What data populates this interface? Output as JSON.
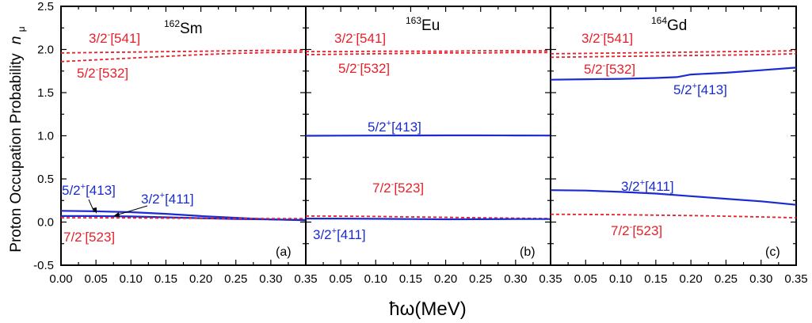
{
  "chart_data": {
    "type": "line",
    "ylabel": "Proton Occupation Probability",
    "ylabel_symbol": "n",
    "ylabel_subscript": "μ",
    "xlabel": "ħω(MeV)",
    "ylim": [
      -0.5,
      2.5
    ],
    "yticks": [
      "-0.5",
      "0.0",
      "0.5",
      "1.0",
      "1.5",
      "2.0",
      "2.5"
    ],
    "colors": {
      "red": "#e8202a",
      "blue": "#1a2bd0"
    },
    "panels": [
      {
        "label": "(a)",
        "nucleus_mass": "162",
        "nucleus_symbol": "Sm",
        "xlim": [
          0,
          0.35
        ],
        "xticks": [
          "0.00",
          "0.05",
          "0.10",
          "0.15",
          "0.20",
          "0.25",
          "0.30",
          "0.35"
        ],
        "series": [
          {
            "label_pre": "3/2",
            "label_sup": "-",
            "label_post": "[541]",
            "color": "red",
            "style": "dashed",
            "x": [
              0,
              0.05,
              0.1,
              0.15,
              0.2,
              0.25,
              0.3,
              0.35
            ],
            "y": [
              1.96,
              1.965,
              1.97,
              1.975,
              1.98,
              1.985,
              1.99,
              1.99
            ]
          },
          {
            "label_pre": "5/2",
            "label_sup": "-",
            "label_post": "[532]",
            "color": "red",
            "style": "dashed",
            "x": [
              0,
              0.05,
              0.1,
              0.15,
              0.2,
              0.25,
              0.3,
              0.35
            ],
            "y": [
              1.86,
              1.88,
              1.9,
              1.92,
              1.94,
              1.955,
              1.965,
              1.97
            ]
          },
          {
            "label_pre": "5/2",
            "label_sup": "+",
            "label_post": "[413]",
            "color": "blue",
            "style": "solid",
            "x": [
              0,
              0.05,
              0.1,
              0.15,
              0.2,
              0.25,
              0.3,
              0.35
            ],
            "y": [
              0.13,
              0.125,
              0.115,
              0.095,
              0.07,
              0.05,
              0.03,
              0.02
            ]
          },
          {
            "label_pre": "3/2",
            "label_sup": "+",
            "label_post": "[411]",
            "color": "blue",
            "style": "solid",
            "x": [
              0,
              0.05,
              0.1,
              0.15,
              0.2,
              0.25,
              0.3,
              0.35
            ],
            "y": [
              0.07,
              0.07,
              0.065,
              0.055,
              0.045,
              0.035,
              0.03,
              0.025
            ]
          },
          {
            "label_pre": "7/2",
            "label_sup": "-",
            "label_post": "[523]",
            "color": "red",
            "style": "dashed",
            "x": [
              0,
              0.05,
              0.1,
              0.15,
              0.2,
              0.25,
              0.3,
              0.35
            ],
            "y": [
              0.05,
              0.05,
              0.048,
              0.045,
              0.043,
              0.042,
              0.04,
              0.04
            ]
          }
        ]
      },
      {
        "label": "(b)",
        "nucleus_mass": "163",
        "nucleus_symbol": "Eu",
        "xlim": [
          0,
          0.35
        ],
        "xticks": [
          "0.05",
          "0.10",
          "0.15",
          "0.20",
          "0.25",
          "0.30",
          "0.35"
        ],
        "series": [
          {
            "label_pre": "3/2",
            "label_sup": "-",
            "label_post": "[541]",
            "color": "red",
            "style": "dashed",
            "x": [
              0,
              0.05,
              0.1,
              0.15,
              0.2,
              0.25,
              0.3,
              0.35
            ],
            "y": [
              1.975,
              1.975,
              1.98,
              1.98,
              1.98,
              1.985,
              1.985,
              1.985
            ]
          },
          {
            "label_pre": "5/2",
            "label_sup": "-",
            "label_post": "[532]",
            "color": "red",
            "style": "dashed",
            "x": [
              0,
              0.05,
              0.1,
              0.15,
              0.2,
              0.25,
              0.3,
              0.35
            ],
            "y": [
              1.94,
              1.945,
              1.95,
              1.955,
              1.96,
              1.96,
              1.965,
              1.965
            ]
          },
          {
            "label_pre": "5/2",
            "label_sup": "+",
            "label_post": "[413]",
            "color": "blue",
            "style": "solid",
            "x": [
              0,
              0.05,
              0.1,
              0.15,
              0.2,
              0.25,
              0.3,
              0.35
            ],
            "y": [
              1.0,
              1.002,
              1.003,
              1.004,
              1.005,
              1.005,
              1.004,
              1.003
            ]
          },
          {
            "label_pre": "7/2",
            "label_sup": "-",
            "label_post": "[523]",
            "color": "red",
            "style": "dashed",
            "x": [
              0,
              0.05,
              0.1,
              0.15,
              0.2,
              0.25,
              0.3,
              0.35
            ],
            "y": [
              0.07,
              0.068,
              0.065,
              0.06,
              0.055,
              0.05,
              0.045,
              0.04
            ]
          },
          {
            "label_pre": "3/2",
            "label_sup": "+",
            "label_post": "[411]",
            "color": "blue",
            "style": "solid",
            "x": [
              0,
              0.05,
              0.1,
              0.15,
              0.2,
              0.25,
              0.3,
              0.35
            ],
            "y": [
              0.04,
              0.04,
              0.038,
              0.035,
              0.032,
              0.033,
              0.035,
              0.035
            ]
          }
        ]
      },
      {
        "label": "(c)",
        "nucleus_mass": "164",
        "nucleus_symbol": "Gd",
        "xlim": [
          0,
          0.35
        ],
        "xticks": [
          "0.05",
          "0.10",
          "0.15",
          "0.20",
          "0.25",
          "0.30",
          "0.35"
        ],
        "series": [
          {
            "label_pre": "3/2",
            "label_sup": "-",
            "label_post": "[541]",
            "color": "red",
            "style": "dashed",
            "x": [
              0,
              0.05,
              0.1,
              0.15,
              0.2,
              0.25,
              0.3,
              0.35
            ],
            "y": [
              1.95,
              1.955,
              1.96,
              1.965,
              1.97,
              1.975,
              1.98,
              1.985
            ]
          },
          {
            "label_pre": "5/2",
            "label_sup": "-",
            "label_post": "[532]",
            "color": "red",
            "style": "dashed",
            "x": [
              0,
              0.05,
              0.1,
              0.15,
              0.2,
              0.25,
              0.3,
              0.35
            ],
            "y": [
              1.91,
              1.915,
              1.92,
              1.925,
              1.93,
              1.935,
              1.94,
              1.95
            ]
          },
          {
            "label_pre": "5/2",
            "label_sup": "+",
            "label_post": "[413]",
            "color": "blue",
            "style": "solid",
            "x": [
              0,
              0.05,
              0.1,
              0.15,
              0.18,
              0.2,
              0.25,
              0.3,
              0.35
            ],
            "y": [
              1.65,
              1.655,
              1.66,
              1.67,
              1.68,
              1.71,
              1.73,
              1.76,
              1.79
            ]
          },
          {
            "label_pre": "3/2",
            "label_sup": "+",
            "label_post": "[411]",
            "color": "blue",
            "style": "solid",
            "x": [
              0,
              0.05,
              0.1,
              0.15,
              0.2,
              0.25,
              0.3,
              0.35
            ],
            "y": [
              0.37,
              0.365,
              0.35,
              0.33,
              0.3,
              0.27,
              0.24,
              0.2
            ]
          },
          {
            "label_pre": "7/2",
            "label_sup": "-",
            "label_post": "[523]",
            "color": "red",
            "style": "dashed",
            "x": [
              0,
              0.05,
              0.1,
              0.15,
              0.2,
              0.25,
              0.3,
              0.35
            ],
            "y": [
              0.09,
              0.088,
              0.085,
              0.08,
              0.075,
              0.068,
              0.06,
              0.05
            ]
          }
        ]
      }
    ]
  }
}
